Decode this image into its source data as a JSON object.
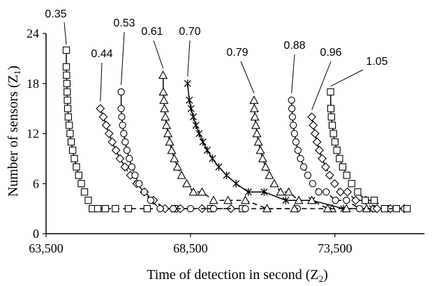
{
  "chart_data": {
    "type": "scatter",
    "xlabel": "Time of detection in second (Z",
    "xlabel_sub": "2",
    "xlabel_end": ")",
    "ylabel": "Number of sensors (Z",
    "ylabel_sub": "1",
    "ylabel_end": ")",
    "xlim": [
      63500,
      76600
    ],
    "ylim": [
      0,
      24
    ],
    "xticks": [
      63500,
      68500,
      73500
    ],
    "xtick_labels": [
      "63,500",
      "68,500",
      "73,500"
    ],
    "yticks": [
      0,
      6,
      12,
      18,
      24
    ],
    "ytick_labels": [
      "0",
      "6",
      "12",
      "18",
      "24"
    ],
    "series": [
      {
        "name": "0.35",
        "marker": "square",
        "line_upper": "solid",
        "line_lower": "dashed",
        "x": [
          64200,
          64200,
          64210,
          64220,
          64230,
          64240,
          64250,
          64270,
          64300,
          64330,
          64370,
          64420,
          64480,
          64550,
          64630,
          64720,
          64830,
          64960,
          65100,
          65290,
          65550,
          65900,
          66350,
          67000,
          67950,
          69200,
          70300
        ],
        "y": [
          22,
          20,
          19,
          18,
          17,
          16,
          15,
          14,
          13,
          12,
          11,
          10,
          9,
          8,
          7,
          6,
          5,
          4,
          3,
          3,
          3,
          3,
          3,
          3,
          3,
          3,
          3
        ]
      },
      {
        "name": "0.44",
        "marker": "diamond",
        "line_upper": "solid",
        "line_lower": "dashed",
        "x": [
          65380,
          65480,
          65580,
          65680,
          65790,
          65920,
          66060,
          66230,
          66420,
          66640,
          66900,
          67220,
          67620,
          68150,
          68900,
          69900
        ],
        "y": [
          15,
          14,
          13,
          12,
          11,
          10,
          9,
          8,
          7,
          6,
          5,
          4,
          3,
          3,
          3,
          3
        ]
      },
      {
        "name": "0.53",
        "marker": "circle",
        "line_upper": "solid",
        "line_lower": "dashed",
        "x": [
          66100,
          66100,
          66120,
          66150,
          66190,
          66240,
          66300,
          66380,
          66470,
          66580,
          66720,
          66900,
          67120,
          67450,
          67900,
          68500,
          69300,
          70400,
          72200
        ],
        "y": [
          17,
          15,
          14,
          13,
          12,
          11,
          10,
          9,
          8,
          7,
          6,
          5,
          4,
          3,
          3,
          3,
          3,
          3,
          3
        ]
      },
      {
        "name": "0.61",
        "marker": "triangle",
        "line_upper": "solid",
        "line_lower": "dashed",
        "x": [
          67550,
          67560,
          67580,
          67600,
          67630,
          67670,
          67720,
          67780,
          67850,
          67940,
          68050,
          68190,
          68370,
          68600,
          68900,
          69300,
          69800,
          70400,
          71150,
          72100,
          73400
        ],
        "y": [
          19,
          17,
          16,
          15,
          14,
          13,
          12,
          11,
          10,
          9,
          8,
          7,
          6,
          5,
          5,
          4,
          4,
          4,
          3,
          3,
          3
        ]
      },
      {
        "name": "0.70",
        "marker": "star",
        "line_upper": "solid",
        "line_lower": "solid",
        "x": [
          68400,
          68460,
          68520,
          68600,
          68690,
          68800,
          68930,
          69080,
          69260,
          69480,
          69750,
          70080,
          70500,
          71050,
          71800,
          72700,
          73800,
          74800
        ],
        "y": [
          18,
          16,
          15,
          14,
          13,
          12,
          11,
          10,
          9,
          8,
          7,
          6,
          5,
          5,
          4,
          4,
          3,
          3
        ]
      },
      {
        "name": "0.79",
        "marker": "triangle",
        "line_upper": "solid",
        "line_lower": "dashed",
        "x": [
          70700,
          70710,
          70730,
          70760,
          70800,
          70850,
          70920,
          71000,
          71100,
          71230,
          71400,
          71620,
          71900,
          72250,
          72700,
          73250,
          73900,
          74600
        ],
        "y": [
          16,
          15,
          14,
          13,
          12,
          11,
          10,
          9,
          8,
          7,
          6,
          5,
          5,
          4,
          4,
          3,
          3,
          3
        ]
      },
      {
        "name": "0.88",
        "marker": "circle",
        "line_upper": "solid",
        "line_lower": "dashed",
        "x": [
          72000,
          72010,
          72030,
          72060,
          72100,
          72150,
          72220,
          72310,
          72420,
          72560,
          72730,
          72940,
          73200,
          73520,
          73900,
          74350,
          74850,
          75400
        ],
        "y": [
          16,
          15,
          14,
          13,
          12,
          11,
          10,
          9,
          8,
          7,
          6,
          5,
          5,
          4,
          4,
          3,
          3,
          3
        ]
      },
      {
        "name": "0.96",
        "marker": "diamond",
        "line_upper": "solid",
        "line_lower": "dashed",
        "x": [
          72700,
          72750,
          72810,
          72880,
          72960,
          73060,
          73180,
          73320,
          73490,
          73690,
          73930,
          74220,
          74560,
          74960,
          75420,
          75900
        ],
        "y": [
          14,
          13,
          12,
          11,
          10,
          9,
          8,
          7,
          6,
          5,
          5,
          4,
          4,
          3,
          3,
          3
        ]
      },
      {
        "name": "1.05",
        "marker": "square",
        "line_upper": "solid",
        "line_lower": "dashed",
        "x": [
          73350,
          73360,
          73380,
          73410,
          73450,
          73500,
          73570,
          73660,
          73770,
          73910,
          74080,
          74290,
          74550,
          74860,
          75220,
          75630,
          76000
        ],
        "y": [
          17,
          15,
          14,
          13,
          12,
          11,
          10,
          9,
          8,
          7,
          6,
          5,
          4,
          4,
          3,
          3,
          3
        ]
      }
    ]
  }
}
